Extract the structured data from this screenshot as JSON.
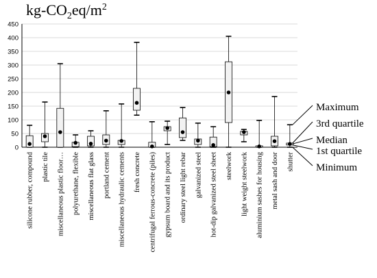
{
  "chart_data": {
    "type": "boxplot",
    "unit_label": "kg-CO",
    "unit_sub": "2",
    "unit_tail": "eq/m",
    "unit_sup": "2",
    "ylim": [
      0,
      450
    ],
    "yticks": [
      0,
      50,
      100,
      150,
      200,
      250,
      300,
      350,
      400,
      450
    ],
    "grid": true,
    "categories": [
      {
        "label": "silicone rubber, compound",
        "min": 0,
        "q1": 0,
        "median": 12,
        "q3": 42,
        "max": 80
      },
      {
        "label": "plastic tile",
        "min": 0,
        "q1": 20,
        "median": 40,
        "q3": 50,
        "max": 165
      },
      {
        "label": "miscellaneous plastic floor…",
        "min": 0,
        "q1": 0,
        "median": 55,
        "q3": 142,
        "max": 305
      },
      {
        "label": "polyurethane, flexible",
        "min": 0,
        "q1": 2,
        "median": 16,
        "q3": 18,
        "max": 45
      },
      {
        "label": "miscellaneous flat glass",
        "min": 0,
        "q1": 5,
        "median": 13,
        "q3": 40,
        "max": 60
      },
      {
        "label": "portland cement",
        "min": 0,
        "q1": 10,
        "median": 24,
        "q3": 45,
        "max": 133
      },
      {
        "label": "miscellaneous hydraulic cements",
        "min": 0,
        "q1": 10,
        "median": 23,
        "q3": 25,
        "max": 158
      },
      {
        "label": "fresh concrete",
        "min": 117,
        "q1": 135,
        "median": 162,
        "q3": 215,
        "max": 383
      },
      {
        "label": "centrifugal ferrous-concrete (piles)",
        "min": 0,
        "q1": 0,
        "median": 3,
        "q3": 18,
        "max": 93
      },
      {
        "label": "gypsum board and its product",
        "min": 10,
        "q1": 60,
        "median": 70,
        "q3": 75,
        "max": 95
      },
      {
        "label": "ordinary steel light rebar",
        "min": 25,
        "q1": 35,
        "median": 55,
        "q3": 107,
        "max": 145
      },
      {
        "label": "galvanized steel",
        "min": 0,
        "q1": 10,
        "median": 24,
        "q3": 30,
        "max": 88
      },
      {
        "label": "hot-dip galvanized steel sheet",
        "min": 0,
        "q1": 2,
        "median": 8,
        "q3": 37,
        "max": 75
      },
      {
        "label": "steelwork",
        "min": 0,
        "q1": 90,
        "median": 200,
        "q3": 312,
        "max": 405
      },
      {
        "label": "light weight steelwork",
        "min": 20,
        "q1": 45,
        "median": 55,
        "q3": 58,
        "max": 65
      },
      {
        "label": "aluminium sashes for housing",
        "min": 0,
        "q1": 0,
        "median": 3,
        "q3": 5,
        "max": 98
      },
      {
        "label": "metal sash and door",
        "min": 0,
        "q1": 5,
        "median": 22,
        "q3": 40,
        "max": 185
      },
      {
        "label": "shutter",
        "min": 0,
        "q1": 8,
        "median": 12,
        "q3": 15,
        "max": 82
      }
    ],
    "legend": {
      "maximum": "Maximum",
      "q3": "3rd quartile",
      "median": "Median",
      "q1": "1st quartile",
      "minimum": "Minimum"
    }
  }
}
